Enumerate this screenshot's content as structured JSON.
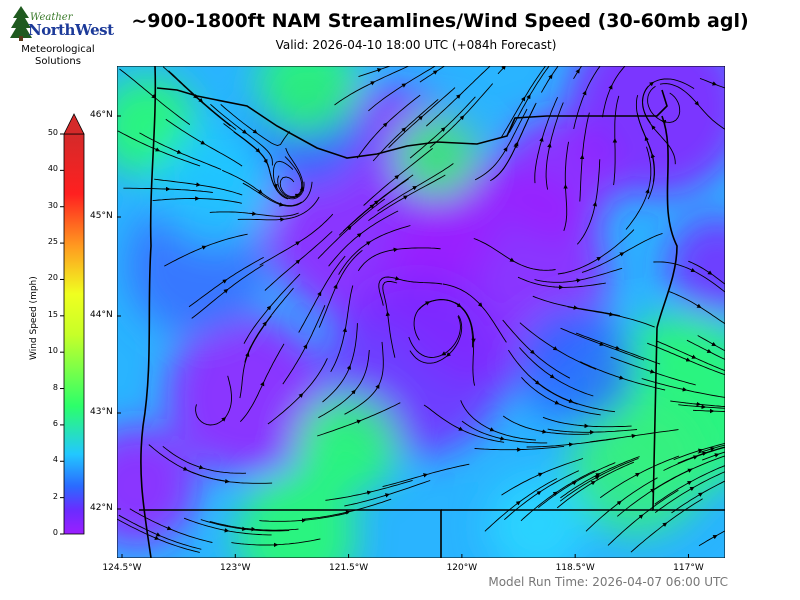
{
  "logo": {
    "brand_top": "Weather",
    "brand_main": "NorthWest",
    "tagline_line1": "Meteorological",
    "tagline_line2": "Solutions"
  },
  "title": "~900-1800ft NAM Streamlines/Wind Speed (30-60mb agl)",
  "subtitle": "Valid: 2026-04-10 18:00 UTC  (+084h Forecast)",
  "footer": "Model Run Time: 2026-04-07 06:00 UTC",
  "colorbar": {
    "label": "Wind Speed (mph)",
    "ticks": [
      "0",
      "2",
      "4",
      "6",
      "8",
      "10",
      "15",
      "20",
      "25",
      "30",
      "40",
      "50"
    ],
    "tick_values": [
      0,
      2,
      4,
      6,
      8,
      10,
      15,
      20,
      25,
      30,
      40,
      50
    ],
    "extend": "max",
    "colors": [
      "#9b1fff",
      "#2a6bff",
      "#22c8ff",
      "#2cff6a",
      "#f0ff20",
      "#ff9a20",
      "#ff2020",
      "#d42a2a"
    ]
  },
  "map": {
    "lat_labels": [
      "46°N",
      "45°N",
      "44°N",
      "43°N",
      "42°N"
    ],
    "lat_values": [
      46,
      45,
      44,
      43,
      42
    ],
    "lon_labels": [
      "124.5°W",
      "123°W",
      "121.5°W",
      "120°W",
      "118.5°W",
      "117°W"
    ],
    "lon_values": [
      -124.5,
      -123,
      -121.5,
      -120,
      -118.5,
      -117
    ]
  }
}
